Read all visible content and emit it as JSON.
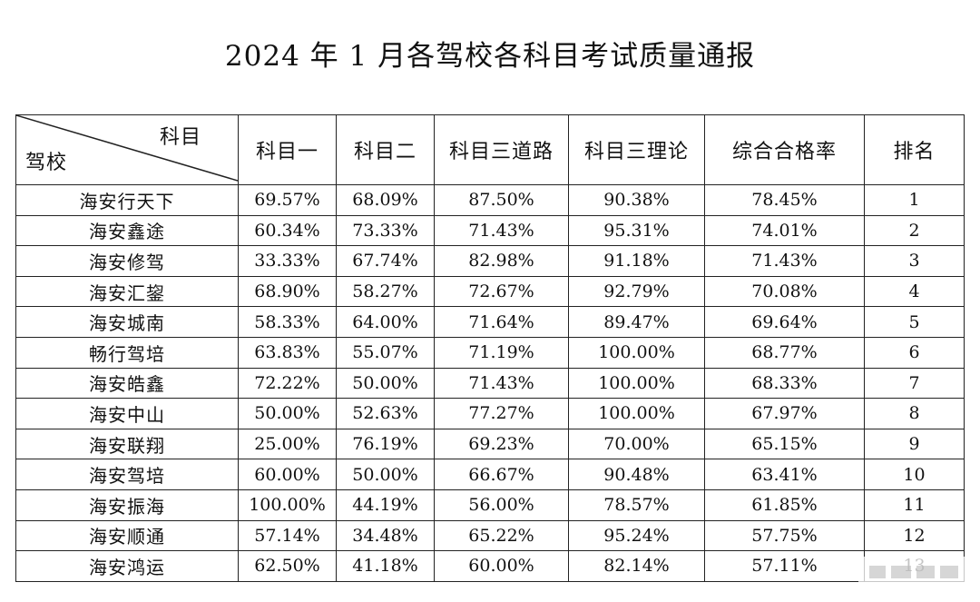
{
  "title": "2024 年 1 月各驾校各科目考试质量通报",
  "table": {
    "corner_top": "科目",
    "corner_bottom": "驾校",
    "headers": [
      "科目一",
      "科目二",
      "科目三道路",
      "科目三理论",
      "综合合格率",
      "排名"
    ],
    "rows": [
      [
        "海安行天下",
        "69.57%",
        "68.09%",
        "87.50%",
        "90.38%",
        "78.45%",
        "1"
      ],
      [
        "海安鑫途",
        "60.34%",
        "73.33%",
        "71.43%",
        "95.31%",
        "74.01%",
        "2"
      ],
      [
        "海安修驾",
        "33.33%",
        "67.74%",
        "82.98%",
        "91.18%",
        "71.43%",
        "3"
      ],
      [
        "海安汇鋆",
        "68.90%",
        "58.27%",
        "72.67%",
        "92.79%",
        "70.08%",
        "4"
      ],
      [
        "海安城南",
        "58.33%",
        "64.00%",
        "71.64%",
        "89.47%",
        "69.64%",
        "5"
      ],
      [
        "畅行驾培",
        "63.83%",
        "55.07%",
        "71.19%",
        "100.00%",
        "68.77%",
        "6"
      ],
      [
        "海安皓鑫",
        "72.22%",
        "50.00%",
        "71.43%",
        "100.00%",
        "68.33%",
        "7"
      ],
      [
        "海安中山",
        "50.00%",
        "52.63%",
        "77.27%",
        "100.00%",
        "67.97%",
        "8"
      ],
      [
        "海安联翔",
        "25.00%",
        "76.19%",
        "69.23%",
        "70.00%",
        "65.15%",
        "9"
      ],
      [
        "海安驾培",
        "60.00%",
        "50.00%",
        "66.67%",
        "90.48%",
        "63.41%",
        "10"
      ],
      [
        "海安振海",
        "100.00%",
        "44.19%",
        "56.00%",
        "78.57%",
        "61.85%",
        "11"
      ],
      [
        "海安顺通",
        "57.14%",
        "34.48%",
        "65.22%",
        "95.24%",
        "57.75%",
        "12"
      ],
      [
        "海安鸿运",
        "62.50%",
        "41.18%",
        "60.00%",
        "82.14%",
        "57.11%",
        "13"
      ]
    ]
  }
}
